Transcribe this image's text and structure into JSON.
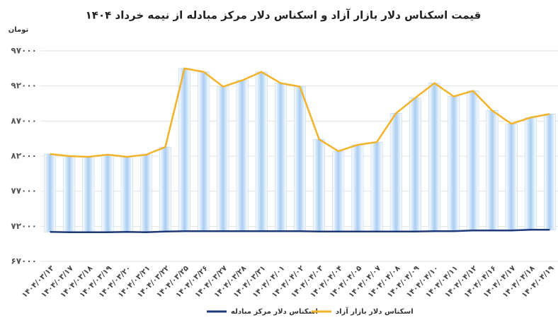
{
  "chart_data": {
    "type": "bar-line",
    "title": "قیمت اسکناس دلار بازار آزاد و اسکناس دلار مرکز مبادله از نیمه خرداد ۱۴۰۴",
    "y_unit": "تومان",
    "categories": [
      "۱۴۰۴/۰۳/۱۳",
      "۱۴۰۴/۰۳/۱۷",
      "۱۴۰۴/۰۳/۱۸",
      "۱۴۰۴/۰۳/۱۹",
      "۱۴۰۴/۰۳/۲۰",
      "۱۴۰۴/۰۳/۲۱",
      "۱۴۰۴/۰۳/۲۲",
      "۱۴۰۴/۰۳/۲۵",
      "۱۴۰۴/۰۳/۲۶",
      "۱۴۰۴/۰۳/۲۷",
      "۱۴۰۴/۰۳/۲۸",
      "۱۴۰۴/۰۳/۳۱",
      "۱۴۰۴/۰۴/۰۱",
      "۱۴۰۴/۰۴/۰۲",
      "۱۴۰۴/۰۴/۰۳",
      "۱۴۰۴/۰۴/۰۴",
      "۱۴۰۴/۰۴/۰۵",
      "۱۴۰۴/۰۴/۰۷",
      "۱۴۰۴/۰۴/۰۸",
      "۱۴۰۴/۰۴/۰۹",
      "۱۴۰۴/۰۴/۱۰",
      "۱۴۰۴/۰۴/۱۱",
      "۱۴۰۴/۰۴/۱۲",
      "۱۴۰۴/۰۴/۱۶",
      "۱۴۰۴/۰۴/۱۷",
      "۱۴۰۴/۰۴/۱۸",
      "۱۴۰۴/۰۴/۱۹"
    ],
    "series": [
      {
        "name": "اسکناس دلار بازار آزاد",
        "color": "#f2b32a",
        "bar_color": "#a9cdf2",
        "values": [
          82300,
          82000,
          81900,
          82200,
          81900,
          82200,
          83300,
          94500,
          94000,
          91900,
          92800,
          94000,
          92400,
          91900,
          84400,
          82700,
          83600,
          84000,
          88100,
          90300,
          92400,
          90500,
          91300,
          88500,
          86600,
          87500,
          88000
        ]
      },
      {
        "name": "اسکناس دلار مرکز مبادله",
        "color": "#1f3a7a",
        "values": [
          71200,
          71150,
          71150,
          71150,
          71200,
          71150,
          71250,
          71300,
          71300,
          71300,
          71300,
          71300,
          71300,
          71300,
          71250,
          71250,
          71250,
          71250,
          71250,
          71250,
          71300,
          71300,
          71400,
          71400,
          71400,
          71500,
          71500
        ]
      }
    ],
    "ylim": [
      67000,
      97000
    ],
    "yticks": [
      {
        "value": 67000,
        "label": "۶۷۰۰۰"
      },
      {
        "value": 72000,
        "label": "۷۲۰۰۰"
      },
      {
        "value": 77000,
        "label": "۷۷۰۰۰"
      },
      {
        "value": 82000,
        "label": "۸۲۰۰۰"
      },
      {
        "value": 87000,
        "label": "۸۷۰۰۰"
      },
      {
        "value": 92000,
        "label": "۹۲۰۰۰"
      },
      {
        "value": 97000,
        "label": "۹۷۰۰۰"
      }
    ],
    "grid": true
  }
}
